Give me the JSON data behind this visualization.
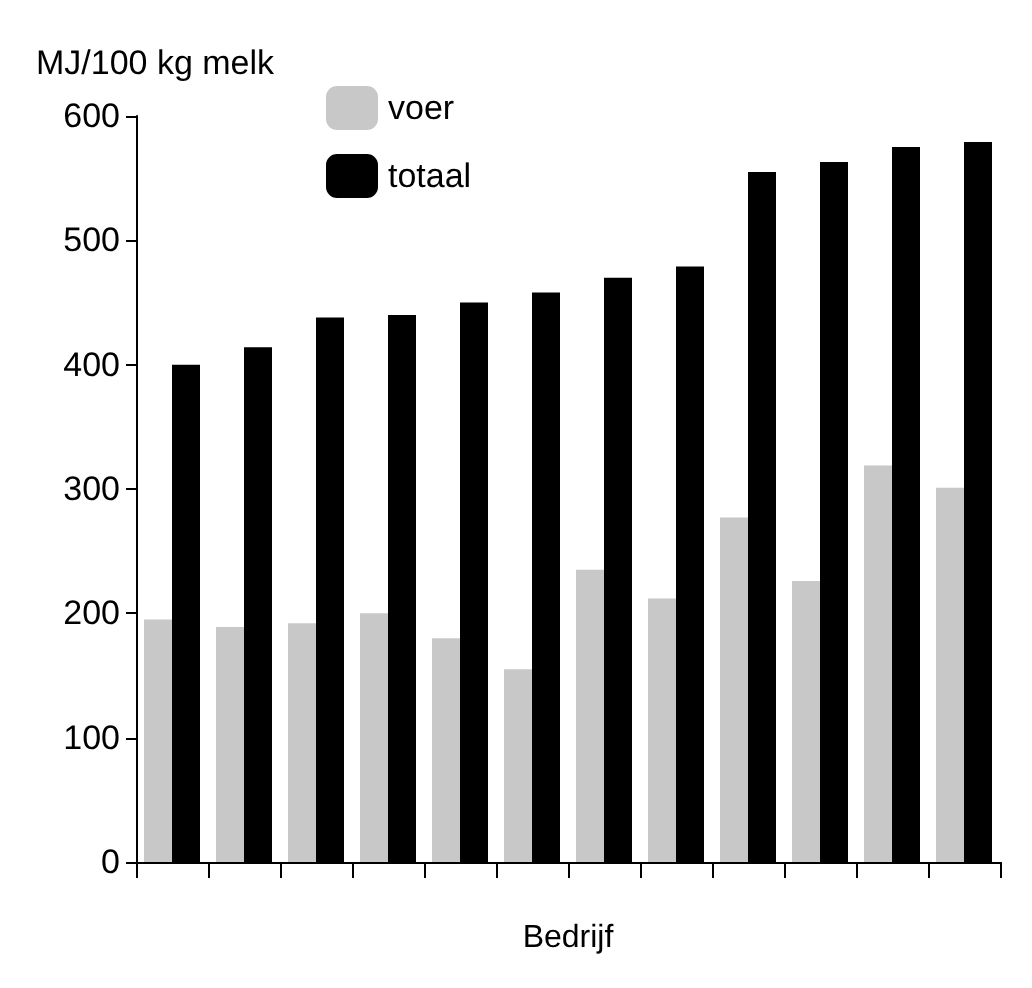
{
  "chart_data": {
    "type": "bar",
    "ylabel": "MJ/100 kg melk",
    "xlabel": "Bedrijf",
    "categories": [
      null,
      null,
      null,
      null,
      null,
      null,
      null,
      null,
      null,
      null,
      null,
      null
    ],
    "series": [
      {
        "name": "voer",
        "color": "#c8c8c8",
        "values": [
          195,
          189,
          192,
          200,
          180,
          155,
          235,
          212,
          277,
          226,
          319,
          301
        ]
      },
      {
        "name": "totaal",
        "color": "#000000",
        "values": [
          400,
          414,
          438,
          440,
          450,
          458,
          470,
          479,
          555,
          563,
          575,
          579
        ]
      }
    ],
    "ylim": [
      0,
      600
    ],
    "yticks": [
      0,
      100,
      200,
      300,
      400,
      500,
      600
    ],
    "grid": false,
    "legend": "top left"
  }
}
